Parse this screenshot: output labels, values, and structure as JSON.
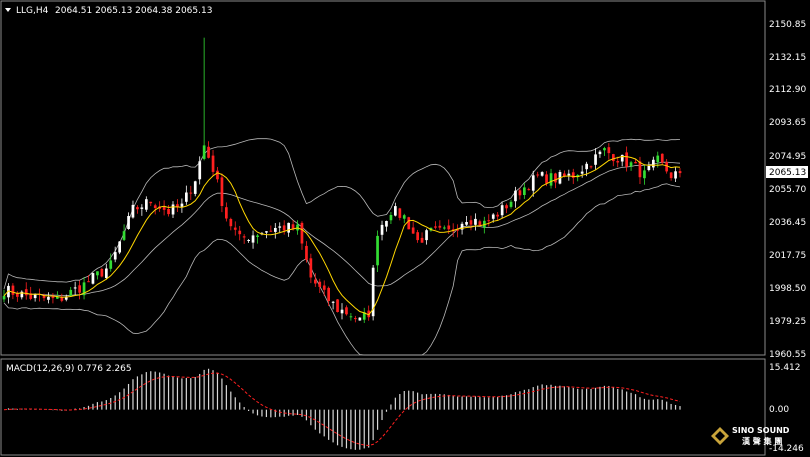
{
  "header": {
    "symbol": "LLG,H4",
    "ohlc": "2064.51 2065.13 2064.38 2065.13"
  },
  "macd": {
    "label": "MACD(12,26,9) 0.776 2.265",
    "scale_labels": [
      "15.412",
      "0.00",
      "-14.246"
    ]
  },
  "price_axis": {
    "labels": [
      "2150.85",
      "2132.15",
      "2112.90",
      "2093.65",
      "2074.95",
      "2055.70",
      "2036.45",
      "2017.75",
      "1998.50",
      "1979.25",
      "1960.55"
    ],
    "current_price": "2065.13"
  },
  "logo": {
    "brand": "SINO SOUND",
    "sub": "漢 聲 集 團"
  },
  "colors": {
    "background": "#000000",
    "bull": "#ffffff",
    "bear": "#ff2020",
    "alt_bull": "#33dd33",
    "ma": "#ffd700",
    "bands": "#b8b8b8",
    "signal": "#ff2020",
    "hist": "#d8d8d8"
  },
  "chart_data": {
    "type": "candlestick",
    "instrument": "LLG",
    "timeframe": "H4",
    "ylim": [
      1960.55,
      2150.85
    ],
    "macd_ylim": [
      -14.246,
      15.412
    ],
    "overlays": [
      "bollinger-bands",
      "moving-average"
    ],
    "anchors": [
      [
        0,
        1998
      ],
      [
        6,
        1994
      ],
      [
        12,
        1992
      ],
      [
        18,
        2001
      ],
      [
        24,
        2012
      ],
      [
        29,
        2044
      ],
      [
        33,
        2049
      ],
      [
        37,
        2043
      ],
      [
        40,
        2046
      ],
      [
        43,
        2062
      ],
      [
        45,
        2081
      ],
      [
        47,
        2068
      ],
      [
        50,
        2040
      ],
      [
        53,
        2027
      ],
      [
        56,
        2030
      ],
      [
        60,
        2033
      ],
      [
        63,
        2034
      ],
      [
        66,
        2033
      ],
      [
        69,
        2005
      ],
      [
        72,
        1995
      ],
      [
        75,
        1987
      ],
      [
        78,
        1984
      ],
      [
        80,
        1980
      ],
      [
        82,
        1985
      ],
      [
        84,
        2032
      ],
      [
        87,
        2044
      ],
      [
        90,
        2040
      ],
      [
        93,
        2026
      ],
      [
        96,
        2031
      ],
      [
        100,
        2031
      ],
      [
        104,
        2040
      ],
      [
        108,
        2036
      ],
      [
        112,
        2044
      ],
      [
        116,
        2055
      ],
      [
        120,
        2063
      ],
      [
        124,
        2062
      ],
      [
        128,
        2064
      ],
      [
        132,
        2072
      ],
      [
        135,
        2078
      ],
      [
        138,
        2074
      ],
      [
        141,
        2070
      ],
      [
        144,
        2064
      ],
      [
        147,
        2072
      ],
      [
        150,
        2064
      ],
      [
        152,
        2065.13
      ]
    ],
    "candle_count": 153,
    "last_close": 2065.13
  }
}
